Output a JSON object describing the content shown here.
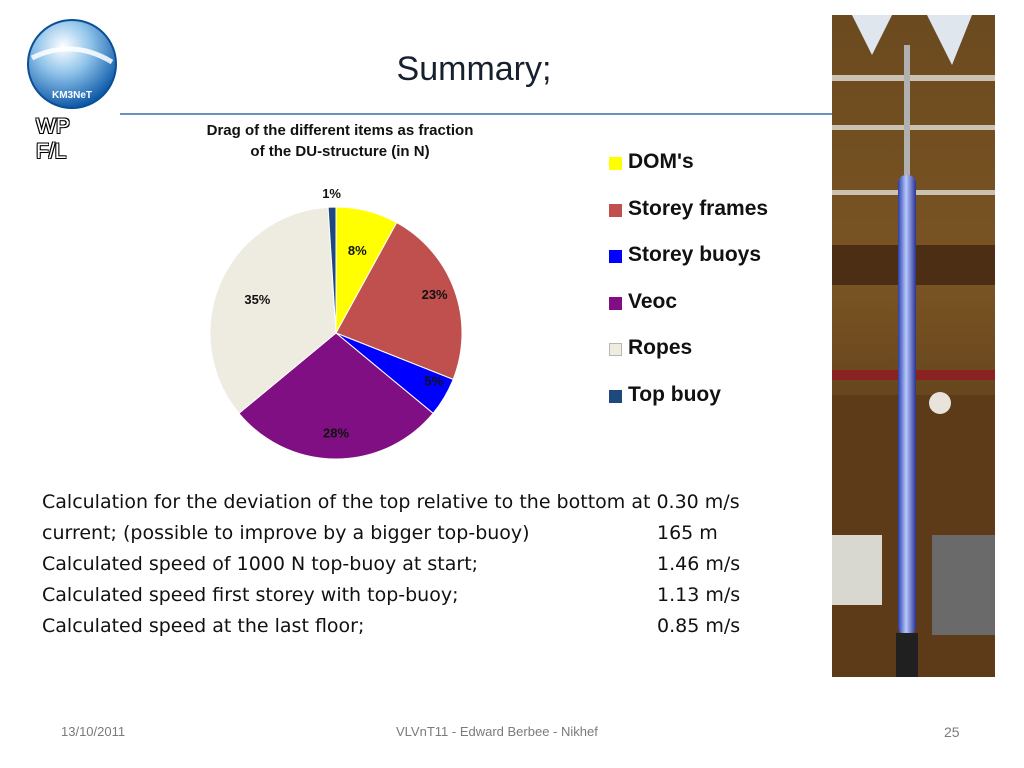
{
  "slide": {
    "title": "Summary;",
    "logo_text": "KM3NeT",
    "tag_line1": "WP",
    "tag_line2": "F/L"
  },
  "chart_data": {
    "type": "pie",
    "title_line1": "Drag of the different items as fraction",
    "title_line2": "of the DU-structure (in N)",
    "legend_placement": "right",
    "slices": [
      {
        "label": "DOM's",
        "value": 8,
        "display": "8%",
        "color": "#ffff00"
      },
      {
        "label": "Storey frames",
        "value": 23,
        "display": "23%",
        "color": "#c0504d"
      },
      {
        "label": "Storey buoys",
        "value": 5,
        "display": "5%",
        "color": "#0000ff"
      },
      {
        "label": "Veoc",
        "value": 28,
        "display": "28%",
        "color": "#7f0f82"
      },
      {
        "label": "Ropes",
        "value": 35,
        "display": "35%",
        "color": "#eeece1"
      },
      {
        "label": "Top buoy",
        "value": 1,
        "display": "1%",
        "color": "#1f497d"
      }
    ]
  },
  "calculations": [
    {
      "text": "Calculation for the deviation of the top relative to the bottom at 0.30 m/s",
      "value": ""
    },
    {
      "text": "current; (possible to improve by a bigger top-buoy)",
      "value": "165 m"
    },
    {
      "text": "Calculated speed of 1000 N top-buoy at start;",
      "value": "1.46 m/s"
    },
    {
      "text": "Calculated speed first storey with top-buoy;",
      "value": "1.13 m/s"
    },
    {
      "text": "Calculated speed at the last floor;",
      "value": "0.85 m/s"
    }
  ],
  "footer": {
    "date": "13/10/2011",
    "author": "VLVnT11 - Edward Berbee - Nikhef",
    "page": "25"
  }
}
